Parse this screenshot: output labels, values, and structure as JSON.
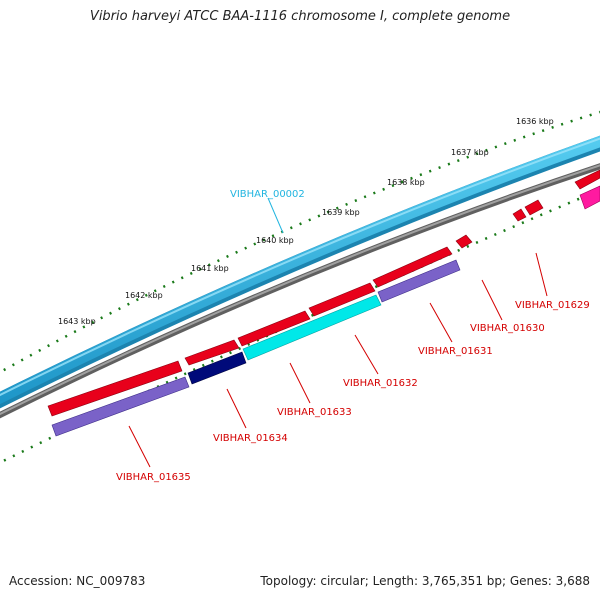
{
  "title": "Vibrio harveyi ATCC BAA-1116 chromosome I, complete genome",
  "footer": {
    "accession": "Accession: NC_009783",
    "summary": "Topology: circular; Length: 3,765,351 bp; Genes: 3,688"
  },
  "ticks": [
    "1636 kbp",
    "1637 kbp",
    "1638 kbp",
    "1639 kbp",
    "1640 kbp",
    "1641 kbp",
    "1642 kbp",
    "1643 kbp"
  ],
  "genes": {
    "g00002": "VIBHAR_00002",
    "g01629": "VIBHAR_01629",
    "g01630": "VIBHAR_01630",
    "g01631": "VIBHAR_01631",
    "g01632": "VIBHAR_01632",
    "g01633": "VIBHAR_01633",
    "g01634": "VIBHAR_01634",
    "g01635": "VIBHAR_01635"
  },
  "colors": {
    "cds": "#e8001b",
    "gene": "#7a62c8",
    "trna_dark": "#000a7a",
    "highlight": "#00e8e8",
    "outer_track": "#2aa8d8",
    "backbone": "#808080",
    "ruler": "#1a7a1a",
    "label_red": "#d40000",
    "label_blue": "#22b5e0",
    "misc": "#ff1aa0"
  }
}
